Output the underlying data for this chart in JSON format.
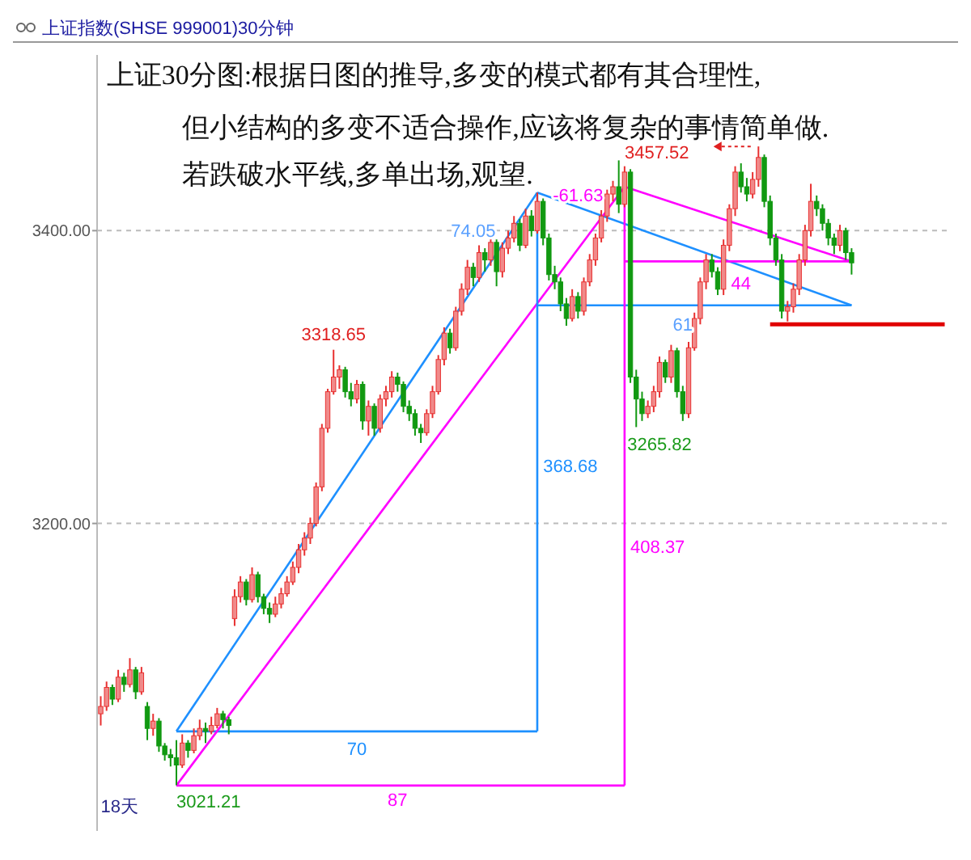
{
  "chart_data": {
    "type": "candlestick",
    "title": "上证指数(SHSE 999001)30分钟",
    "categories": [
      null,
      null,
      null,
      null,
      null,
      null,
      null,
      null,
      null,
      null,
      null,
      null,
      null,
      null,
      null,
      null,
      null,
      null,
      null,
      null,
      null,
      null,
      null,
      null,
      null,
      null,
      null,
      null,
      null,
      null,
      null,
      null,
      null,
      null,
      null,
      null,
      null,
      null,
      null,
      null,
      null,
      null,
      null,
      null,
      null,
      null,
      null,
      null,
      null,
      null,
      null,
      null,
      null,
      null,
      null,
      null,
      null,
      null,
      null,
      null,
      null,
      null,
      null,
      null,
      null,
      null,
      null,
      null,
      null,
      null,
      null,
      null,
      null,
      null,
      null,
      null,
      null,
      null,
      null,
      null,
      null,
      null,
      null,
      null,
      null,
      null,
      null,
      null,
      null,
      null,
      null,
      null,
      null,
      null,
      null,
      null,
      null,
      null,
      null,
      null,
      null,
      null,
      null,
      null,
      null,
      null,
      null,
      null,
      null,
      null,
      null,
      null,
      null,
      null,
      null,
      null,
      null,
      null,
      null,
      null,
      null,
      null,
      null,
      null,
      null,
      null,
      null,
      null,
      null,
      null,
      null,
      null,
      null,
      null,
      null,
      null,
      null,
      null,
      null,
      null,
      null,
      null,
      null,
      null,
      null,
      null
    ],
    "ohlc": [
      [
        3070,
        3082,
        3062,
        3075
      ],
      [
        3075,
        3092,
        3072,
        3088
      ],
      [
        3088,
        3090,
        3076,
        3080
      ],
      [
        3080,
        3100,
        3078,
        3095
      ],
      [
        3095,
        3098,
        3085,
        3090
      ],
      [
        3090,
        3108,
        3088,
        3100
      ],
      [
        3100,
        3102,
        3080,
        3085
      ],
      [
        3085,
        3102,
        3083,
        3098
      ],
      [
        3075,
        3078,
        3052,
        3060
      ],
      [
        3060,
        3070,
        3055,
        3065
      ],
      [
        3065,
        3067,
        3044,
        3048
      ],
      [
        3048,
        3050,
        3038,
        3042
      ],
      [
        3042,
        3046,
        3034,
        3040
      ],
      [
        3040,
        3052,
        3021.21,
        3035
      ],
      [
        3035,
        3056,
        3033,
        3050
      ],
      [
        3050,
        3052,
        3040,
        3045
      ],
      [
        3045,
        3060,
        3043,
        3055
      ],
      [
        3055,
        3066,
        3052,
        3060
      ],
      [
        3060,
        3064,
        3050,
        3058
      ],
      [
        3058,
        3068,
        3056,
        3062
      ],
      [
        3062,
        3074,
        3060,
        3070
      ],
      [
        3070,
        3072,
        3060,
        3066
      ],
      [
        3066,
        3068,
        3056,
        3062
      ],
      [
        3135,
        3155,
        3130,
        3150
      ],
      [
        3150,
        3164,
        3146,
        3160
      ],
      [
        3160,
        3162,
        3144,
        3148
      ],
      [
        3148,
        3170,
        3146,
        3165
      ],
      [
        3165,
        3167,
        3146,
        3150
      ],
      [
        3150,
        3152,
        3138,
        3142
      ],
      [
        3142,
        3146,
        3132,
        3138
      ],
      [
        3138,
        3150,
        3136,
        3145
      ],
      [
        3145,
        3156,
        3142,
        3152
      ],
      [
        3152,
        3164,
        3150,
        3160
      ],
      [
        3160,
        3174,
        3158,
        3170
      ],
      [
        3170,
        3186,
        3166,
        3182
      ],
      [
        3182,
        3194,
        3178,
        3190
      ],
      [
        3190,
        3204,
        3186,
        3200
      ],
      [
        3200,
        3228,
        3198,
        3225
      ],
      [
        3225,
        3268,
        3222,
        3265
      ],
      [
        3265,
        3292,
        3262,
        3290
      ],
      [
        3290,
        3318.65,
        3288,
        3300
      ],
      [
        3300,
        3308,
        3292,
        3305
      ],
      [
        3305,
        3307,
        3286,
        3290
      ],
      [
        3290,
        3296,
        3280,
        3285
      ],
      [
        3285,
        3298,
        3282,
        3295
      ],
      [
        3295,
        3297,
        3264,
        3270
      ],
      [
        3270,
        3284,
        3260,
        3280
      ],
      [
        3280,
        3282,
        3260,
        3265
      ],
      [
        3265,
        3288,
        3262,
        3285
      ],
      [
        3285,
        3294,
        3280,
        3290
      ],
      [
        3290,
        3304,
        3286,
        3300
      ],
      [
        3300,
        3303,
        3290,
        3295
      ],
      [
        3295,
        3297,
        3276,
        3280
      ],
      [
        3280,
        3284,
        3270,
        3275
      ],
      [
        3275,
        3278,
        3260,
        3265
      ],
      [
        3265,
        3268,
        3255,
        3262
      ],
      [
        3262,
        3278,
        3260,
        3275
      ],
      [
        3275,
        3294,
        3272,
        3290
      ],
      [
        3290,
        3315,
        3288,
        3312
      ],
      [
        3312,
        3334,
        3308,
        3330
      ],
      [
        3330,
        3333,
        3316,
        3320
      ],
      [
        3320,
        3348,
        3318,
        3345
      ],
      [
        3345,
        3364,
        3342,
        3360
      ],
      [
        3360,
        3380,
        3356,
        3375
      ],
      [
        3375,
        3378,
        3362,
        3368
      ],
      [
        3368,
        3390,
        3365,
        3385
      ],
      [
        3385,
        3388,
        3372,
        3380
      ],
      [
        3380,
        3396,
        3376,
        3392
      ],
      [
        3392,
        3394,
        3362,
        3372
      ],
      [
        3372,
        3392,
        3368,
        3388
      ],
      [
        3388,
        3400,
        3384,
        3395
      ],
      [
        3395,
        3410,
        3392,
        3405
      ],
      [
        3405,
        3408,
        3386,
        3390
      ],
      [
        3390,
        3415,
        3388,
        3410
      ],
      [
        3410,
        3414,
        3396,
        3400
      ],
      [
        3400,
        3426,
        3398,
        3420
      ],
      [
        3420,
        3422,
        3390,
        3395
      ],
      [
        3395,
        3398,
        3366,
        3370
      ],
      [
        3370,
        3376,
        3360,
        3365
      ],
      [
        3365,
        3368,
        3345,
        3350
      ],
      [
        3350,
        3354,
        3335,
        3340
      ],
      [
        3340,
        3360,
        3338,
        3355
      ],
      [
        3355,
        3358,
        3340,
        3345
      ],
      [
        3345,
        3368,
        3342,
        3365
      ],
      [
        3365,
        3384,
        3362,
        3380
      ],
      [
        3380,
        3398,
        3376,
        3395
      ],
      [
        3395,
        3414,
        3392,
        3410
      ],
      [
        3410,
        3428,
        3406,
        3425
      ],
      [
        3425,
        3434,
        3420,
        3430
      ],
      [
        3430,
        3448,
        3412,
        3418
      ],
      [
        3418,
        3444,
        3416,
        3440
      ],
      [
        3440,
        3442,
        3296,
        3300
      ],
      [
        3300,
        3305,
        3265.82,
        3285
      ],
      [
        3285,
        3290,
        3270,
        3275
      ],
      [
        3275,
        3284,
        3272,
        3280
      ],
      [
        3280,
        3294,
        3276,
        3290
      ],
      [
        3290,
        3314,
        3286,
        3310
      ],
      [
        3310,
        3312,
        3296,
        3300
      ],
      [
        3300,
        3322,
        3296,
        3318
      ],
      [
        3318,
        3320,
        3286,
        3290
      ],
      [
        3290,
        3294,
        3270,
        3275
      ],
      [
        3275,
        3324,
        3272,
        3320
      ],
      [
        3320,
        3344,
        3318,
        3340
      ],
      [
        3340,
        3368,
        3336,
        3365
      ],
      [
        3365,
        3384,
        3360,
        3380
      ],
      [
        3380,
        3384,
        3368,
        3372
      ],
      [
        3372,
        3375,
        3356,
        3360
      ],
      [
        3360,
        3394,
        3356,
        3390
      ],
      [
        3390,
        3418,
        3386,
        3415
      ],
      [
        3415,
        3444,
        3410,
        3440
      ],
      [
        3440,
        3446,
        3426,
        3430
      ],
      [
        3430,
        3436,
        3420,
        3425
      ],
      [
        3425,
        3440,
        3422,
        3435
      ],
      [
        3435,
        3457.52,
        3430,
        3450
      ],
      [
        3450,
        3452,
        3416,
        3420
      ],
      [
        3420,
        3424,
        3390,
        3395
      ],
      [
        3395,
        3398,
        3376,
        3380
      ],
      [
        3380,
        3384,
        3340,
        3345
      ],
      [
        3345,
        3352,
        3338,
        3348
      ],
      [
        3348,
        3364,
        3344,
        3360
      ],
      [
        3360,
        3384,
        3356,
        3380
      ],
      [
        3380,
        3404,
        3376,
        3400
      ],
      [
        3400,
        3432,
        3396,
        3420
      ],
      [
        3420,
        3424,
        3410,
        3415
      ],
      [
        3415,
        3418,
        3400,
        3405
      ],
      [
        3405,
        3408,
        3390,
        3395
      ],
      [
        3395,
        3398,
        3384,
        3390
      ],
      [
        3390,
        3404,
        3386,
        3400
      ],
      [
        3400,
        3402,
        3380,
        3385
      ],
      [
        3385,
        3388,
        3370,
        3378
      ],
      null,
      null,
      null,
      null,
      null,
      null,
      null,
      null,
      null,
      null,
      null,
      null,
      null,
      null,
      null,
      null
    ],
    "series": [
      {
        "type": "line",
        "color": "#1e90ff",
        "values": [
          null,
          null,
          null,
          null,
          null,
          null,
          null,
          null,
          null,
          null,
          null,
          null,
          null,
          3058,
          null,
          null,
          null,
          null,
          null,
          null,
          null,
          null,
          null,
          null,
          null,
          null,
          null,
          null,
          null,
          null,
          null,
          null,
          null,
          null,
          null,
          null,
          null,
          null,
          null,
          null,
          null,
          null,
          null,
          null,
          null,
          null,
          null,
          null,
          null,
          null,
          null,
          null,
          null,
          null,
          null,
          null,
          null,
          null,
          null,
          null,
          null,
          null,
          null,
          null,
          null,
          null,
          null,
          null,
          null,
          null,
          null,
          null,
          null,
          null,
          null,
          3426,
          null,
          null,
          null,
          null,
          null,
          null,
          null,
          null,
          null,
          null,
          null,
          null,
          null,
          null,
          null,
          null,
          null,
          null,
          null,
          null,
          null,
          null,
          null,
          null,
          null,
          null,
          null,
          null,
          null,
          null,
          null,
          null,
          null,
          null,
          null,
          null,
          null,
          null,
          null,
          null,
          null,
          null,
          null,
          null,
          null,
          null,
          null,
          null,
          null,
          null,
          null,
          null,
          null,
          null,
          null,
          null,
          null,
          null,
          null,
          null,
          null,
          null,
          null,
          null,
          null,
          null,
          null,
          null,
          null,
          null
        ]
      },
      {
        "type": "line",
        "color": "#1e90ff",
        "values": [
          null,
          null,
          null,
          null,
          null,
          null,
          null,
          null,
          null,
          null,
          null,
          null,
          null,
          3058,
          null,
          null,
          null,
          null,
          null,
          null,
          null,
          null,
          null,
          null,
          null,
          null,
          null,
          null,
          null,
          null,
          null,
          null,
          null,
          null,
          null,
          null,
          null,
          null,
          null,
          null,
          null,
          null,
          null,
          null,
          null,
          null,
          null,
          null,
          null,
          null,
          null,
          null,
          null,
          null,
          null,
          null,
          null,
          null,
          null,
          null,
          null,
          null,
          null,
          null,
          null,
          null,
          null,
          null,
          null,
          null,
          null,
          null,
          null,
          null,
          null,
          3058,
          null,
          null,
          null,
          null,
          null,
          null,
          null,
          null,
          null,
          null,
          null,
          null,
          null,
          null,
          null,
          null,
          null,
          null,
          null,
          null,
          null,
          null,
          null,
          null,
          null,
          null,
          null,
          null,
          null,
          null,
          null,
          null,
          null,
          null,
          null,
          null,
          null,
          null,
          null,
          null,
          null,
          null,
          null,
          null,
          null,
          null,
          null,
          null,
          null,
          null,
          null,
          null,
          null,
          null,
          null,
          null,
          null,
          null,
          null,
          null,
          null,
          null,
          null,
          null,
          null,
          null,
          null,
          null,
          null,
          null
        ]
      },
      {
        "type": "line",
        "color": "#1e90ff",
        "values": [
          null,
          null,
          null,
          null,
          null,
          null,
          null,
          null,
          null,
          null,
          null,
          null,
          null,
          null,
          null,
          null,
          null,
          null,
          null,
          null,
          null,
          null,
          null,
          null,
          null,
          null,
          null,
          null,
          null,
          null,
          null,
          null,
          null,
          null,
          null,
          null,
          null,
          null,
          null,
          null,
          null,
          null,
          null,
          null,
          null,
          null,
          null,
          null,
          null,
          null,
          null,
          null,
          null,
          null,
          null,
          null,
          null,
          null,
          null,
          null,
          null,
          null,
          null,
          null,
          null,
          null,
          null,
          null,
          null,
          null,
          null,
          null,
          null,
          null,
          null,
          3426,
          null,
          null,
          null,
          null,
          null,
          null,
          null,
          null,
          null,
          null,
          null,
          null,
          null,
          null,
          null,
          null,
          null,
          null,
          null,
          null,
          null,
          null,
          null,
          null,
          null,
          null,
          null,
          null,
          null,
          null,
          null,
          null,
          null,
          null,
          null,
          null,
          null,
          null,
          null,
          null,
          null,
          null,
          null,
          null,
          null,
          null,
          null,
          null,
          null,
          null,
          null,
          null,
          null,
          3349,
          null,
          null,
          null,
          null,
          null,
          null,
          null,
          null,
          null,
          null,
          null,
          null,
          null,
          null,
          null,
          null
        ]
      },
      {
        "type": "line",
        "color": "#1e90ff",
        "values": [
          null,
          null,
          null,
          null,
          null,
          null,
          null,
          null,
          null,
          null,
          null,
          null,
          null,
          null,
          null,
          null,
          null,
          null,
          null,
          null,
          null,
          null,
          null,
          null,
          null,
          null,
          null,
          null,
          null,
          null,
          null,
          null,
          null,
          null,
          null,
          null,
          null,
          null,
          null,
          null,
          null,
          null,
          null,
          null,
          null,
          null,
          null,
          null,
          null,
          null,
          null,
          null,
          null,
          null,
          null,
          null,
          null,
          null,
          null,
          null,
          null,
          null,
          null,
          null,
          null,
          null,
          null,
          null,
          null,
          null,
          null,
          null,
          null,
          null,
          null,
          3349,
          null,
          null,
          null,
          null,
          null,
          null,
          null,
          null,
          null,
          null,
          null,
          null,
          null,
          null,
          null,
          null,
          null,
          null,
          null,
          null,
          null,
          null,
          null,
          null,
          null,
          null,
          null,
          null,
          null,
          null,
          null,
          null,
          null,
          null,
          null,
          null,
          null,
          null,
          null,
          null,
          null,
          null,
          null,
          null,
          null,
          null,
          null,
          null,
          null,
          null,
          null,
          null,
          null,
          3349,
          null,
          null,
          null,
          null,
          null,
          null,
          null,
          null,
          null,
          null,
          null,
          null,
          null,
          null,
          null,
          null
        ]
      },
      {
        "type": "line",
        "color": "#ff00ff",
        "values": [
          null,
          null,
          null,
          null,
          null,
          null,
          null,
          null,
          null,
          null,
          null,
          null,
          null,
          3021,
          null,
          null,
          null,
          null,
          null,
          null,
          null,
          null,
          null,
          null,
          null,
          null,
          null,
          null,
          null,
          null,
          null,
          null,
          null,
          null,
          null,
          null,
          null,
          null,
          null,
          null,
          null,
          null,
          null,
          null,
          null,
          null,
          null,
          null,
          null,
          null,
          null,
          null,
          null,
          null,
          null,
          null,
          null,
          null,
          null,
          null,
          null,
          null,
          null,
          null,
          null,
          null,
          null,
          null,
          null,
          null,
          null,
          null,
          null,
          null,
          null,
          null,
          null,
          null,
          null,
          null,
          null,
          null,
          null,
          null,
          null,
          null,
          null,
          null,
          null,
          null,
          3430,
          null,
          null,
          null,
          null,
          null,
          null,
          null,
          null,
          null,
          null,
          null,
          null,
          null,
          null,
          null,
          null,
          null,
          null,
          null,
          null,
          null,
          null,
          null,
          null,
          null,
          null,
          null,
          null,
          null,
          null,
          null,
          null,
          null,
          null,
          null,
          null,
          null,
          null,
          null,
          null,
          null,
          null,
          null,
          null,
          null,
          null,
          null,
          null,
          null,
          null,
          null,
          null,
          null,
          null,
          null
        ]
      },
      {
        "type": "line",
        "color": "#ff00ff",
        "values": [
          null,
          null,
          null,
          null,
          null,
          null,
          null,
          null,
          null,
          null,
          null,
          null,
          null,
          3021,
          null,
          null,
          null,
          null,
          null,
          null,
          null,
          null,
          null,
          null,
          null,
          null,
          null,
          null,
          null,
          null,
          null,
          null,
          null,
          null,
          null,
          null,
          null,
          null,
          null,
          null,
          null,
          null,
          null,
          null,
          null,
          null,
          null,
          null,
          null,
          null,
          null,
          null,
          null,
          null,
          null,
          null,
          null,
          null,
          null,
          null,
          null,
          null,
          null,
          null,
          null,
          null,
          null,
          null,
          null,
          null,
          null,
          null,
          null,
          null,
          null,
          null,
          null,
          null,
          null,
          null,
          null,
          null,
          null,
          null,
          null,
          null,
          null,
          null,
          null,
          null,
          3021,
          null,
          null,
          null,
          null,
          null,
          null,
          null,
          null,
          null,
          null,
          null,
          null,
          null,
          null,
          null,
          null,
          null,
          null,
          null,
          null,
          null,
          null,
          null,
          null,
          null,
          null,
          null,
          null,
          null,
          null,
          null,
          null,
          null,
          null,
          null,
          null,
          null,
          null,
          null,
          null,
          null,
          null,
          null,
          null,
          null,
          null,
          null,
          null,
          null,
          null,
          null,
          null,
          null,
          null,
          null
        ]
      },
      {
        "type": "line",
        "color": "#ff00ff",
        "values": [
          null,
          null,
          null,
          null,
          null,
          null,
          null,
          null,
          null,
          null,
          null,
          null,
          null,
          null,
          null,
          null,
          null,
          null,
          null,
          null,
          null,
          null,
          null,
          null,
          null,
          null,
          null,
          null,
          null,
          null,
          null,
          null,
          null,
          null,
          null,
          null,
          null,
          null,
          null,
          null,
          null,
          null,
          null,
          null,
          null,
          null,
          null,
          null,
          null,
          null,
          null,
          null,
          null,
          null,
          null,
          null,
          null,
          null,
          null,
          null,
          null,
          null,
          null,
          null,
          null,
          null,
          null,
          null,
          null,
          null,
          null,
          null,
          null,
          null,
          null,
          null,
          null,
          null,
          null,
          null,
          null,
          null,
          null,
          null,
          null,
          null,
          null,
          null,
          null,
          null,
          3430,
          null,
          null,
          null,
          null,
          null,
          null,
          null,
          null,
          null,
          null,
          null,
          null,
          null,
          null,
          null,
          null,
          null,
          null,
          null,
          null,
          null,
          null,
          null,
          null,
          null,
          null,
          null,
          null,
          null,
          null,
          null,
          null,
          null,
          null,
          null,
          null,
          null,
          null,
          3379,
          null,
          null,
          null,
          null,
          null,
          null,
          null,
          null,
          null,
          null,
          null,
          null,
          null,
          null,
          null,
          null
        ]
      },
      {
        "type": "line",
        "color": "#ff00ff",
        "values": [
          null,
          null,
          null,
          null,
          null,
          null,
          null,
          null,
          null,
          null,
          null,
          null,
          null,
          null,
          null,
          null,
          null,
          null,
          null,
          null,
          null,
          null,
          null,
          null,
          null,
          null,
          null,
          null,
          null,
          null,
          null,
          null,
          null,
          null,
          null,
          null,
          null,
          null,
          null,
          null,
          null,
          null,
          null,
          null,
          null,
          null,
          null,
          null,
          null,
          null,
          null,
          null,
          null,
          null,
          null,
          null,
          null,
          null,
          null,
          null,
          null,
          null,
          null,
          null,
          null,
          null,
          null,
          null,
          null,
          null,
          null,
          null,
          null,
          null,
          null,
          null,
          null,
          null,
          null,
          null,
          null,
          null,
          null,
          null,
          null,
          null,
          null,
          null,
          null,
          null,
          3379,
          null,
          null,
          null,
          null,
          null,
          null,
          null,
          null,
          null,
          null,
          null,
          null,
          null,
          null,
          null,
          null,
          null,
          null,
          null,
          null,
          null,
          null,
          null,
          null,
          null,
          null,
          null,
          null,
          null,
          null,
          null,
          null,
          null,
          null,
          null,
          null,
          null,
          null,
          3379,
          null,
          null,
          null,
          null,
          null,
          null,
          null,
          null,
          null,
          null,
          null,
          null,
          null,
          null,
          null,
          null
        ]
      },
      {
        "type": "line",
        "color": "#e00000",
        "values": [
          null,
          null,
          null,
          null,
          null,
          null,
          null,
          null,
          null,
          null,
          null,
          null,
          null,
          null,
          null,
          null,
          null,
          null,
          null,
          null,
          null,
          null,
          null,
          null,
          null,
          null,
          null,
          null,
          null,
          null,
          null,
          null,
          null,
          null,
          null,
          null,
          null,
          null,
          null,
          null,
          null,
          null,
          null,
          null,
          null,
          null,
          null,
          null,
          null,
          null,
          null,
          null,
          null,
          null,
          null,
          null,
          null,
          null,
          null,
          null,
          null,
          null,
          null,
          null,
          null,
          null,
          null,
          null,
          null,
          null,
          null,
          null,
          null,
          null,
          null,
          null,
          null,
          null,
          null,
          null,
          null,
          null,
          null,
          null,
          null,
          null,
          null,
          null,
          null,
          null,
          null,
          null,
          null,
          null,
          null,
          null,
          null,
          null,
          null,
          null,
          null,
          null,
          null,
          null,
          null,
          null,
          null,
          null,
          null,
          null,
          null,
          null,
          null,
          null,
          null,
          3336,
          null,
          null,
          null,
          null,
          null,
          null,
          null,
          null,
          null,
          null,
          null,
          null,
          null,
          null,
          null,
          null,
          null,
          null,
          null,
          null,
          null,
          null,
          null,
          null,
          null,
          null,
          null,
          null,
          null,
          3336
        ]
      }
    ],
    "ylim": [
      2990,
      3520
    ],
    "yticks": [
      {
        "value": 3200,
        "label": "3200.00"
      },
      {
        "value": 3400,
        "label": "3400.00"
      }
    ],
    "grid": "y",
    "annotations": [
      "上证30分图:根据日图的推导,多变的模式都有其合理性,",
      "但小结构的多变不适合操作,应该将复杂的事情简单做.",
      "若跌破水平线,多单出场,观望.",
      {
        "text": "3318.65",
        "y": 3318.65
      },
      "3265.82",
      "3457.52",
      "3021.21",
      "18天",
      "70",
      "87",
      "368.68",
      "408.37",
      "74.05",
      "-61.63",
      "61",
      "44"
    ]
  }
}
